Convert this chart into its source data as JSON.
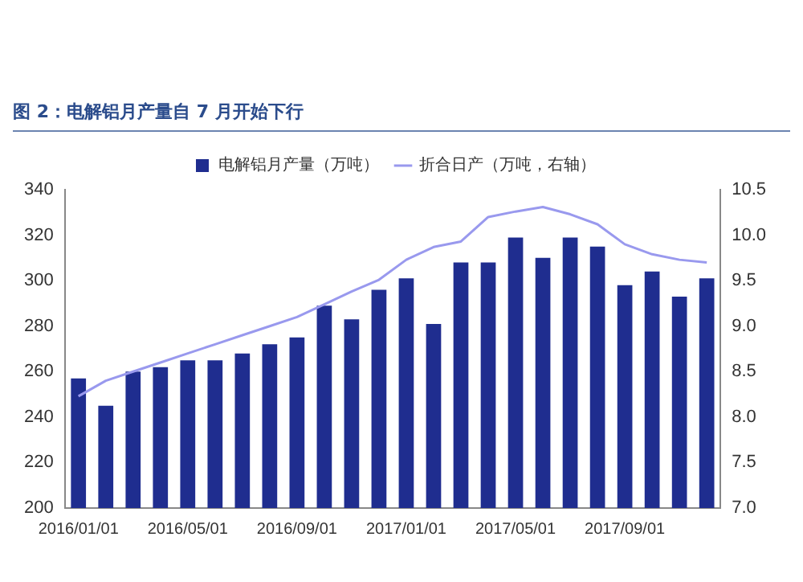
{
  "chart_data": {
    "type": "bar",
    "title": "图 2：电解铝月产量自 7 月开始下行",
    "categories": [
      "2016/01/01",
      null,
      null,
      null,
      "2016/05/01",
      null,
      null,
      null,
      "2016/09/01",
      null,
      null,
      null,
      "2017/01/01",
      null,
      null,
      null,
      "2017/05/01",
      null,
      null,
      null,
      "2017/09/01",
      null,
      null,
      null
    ],
    "series": [
      {
        "name": "电解铝月产量（万吨）",
        "color": "#1f2d8f",
        "values": [
          257,
          245,
          260,
          262,
          265,
          265,
          268,
          272,
          275,
          289,
          283,
          296,
          301,
          281,
          308,
          308,
          319,
          310,
          319,
          315,
          298,
          304,
          293,
          301
        ]
      },
      {
        "name": "折合日产（万吨，右轴）",
        "type": "line",
        "axis": "y2",
        "color": "#9999ee",
        "values": [
          8.23,
          8.4,
          8.5,
          8.6,
          8.7,
          8.8,
          8.9,
          9.0,
          9.1,
          9.24,
          9.38,
          9.51,
          9.73,
          9.87,
          9.93,
          10.2,
          10.26,
          10.31,
          10.23,
          10.12,
          9.9,
          9.79,
          9.73,
          9.7
        ]
      }
    ],
    "ylim": [
      200,
      340
    ],
    "yticks": [
      200,
      220,
      240,
      260,
      280,
      300,
      320,
      340
    ],
    "y2lim": [
      7,
      10.5
    ],
    "y2ticks": [
      {
        "value": 7,
        "label": "7.0"
      },
      {
        "value": 7.5,
        "label": "7.5"
      },
      {
        "value": 8,
        "label": "8.0"
      },
      {
        "value": 8.5,
        "label": "8.5"
      },
      {
        "value": 9,
        "label": "9.0"
      },
      {
        "value": 9.5,
        "label": "9.5"
      },
      {
        "value": 10,
        "label": "10.0"
      },
      {
        "value": 10.5,
        "label": "10.5"
      }
    ],
    "grid": false,
    "legend": "top",
    "marker": "none"
  }
}
